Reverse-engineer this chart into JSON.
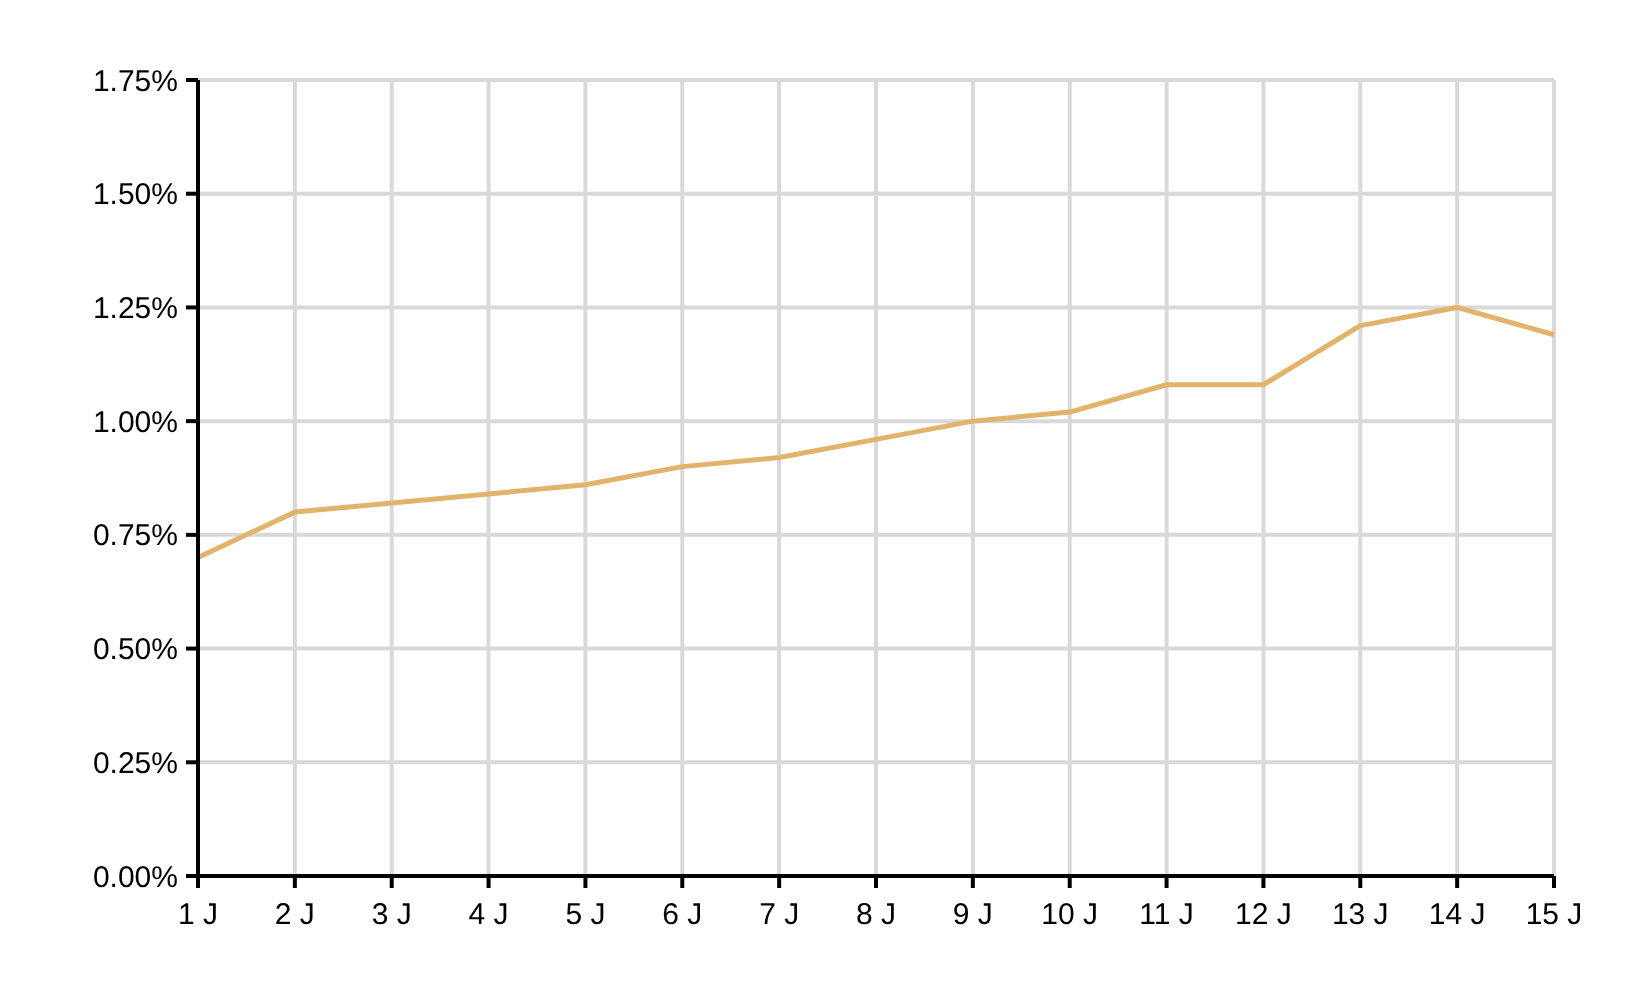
{
  "chart_data": {
    "type": "line",
    "categories": [
      "1 J",
      "2 J",
      "3 J",
      "4 J",
      "5 J",
      "6 J",
      "7 J",
      "8 J",
      "9 J",
      "10 J",
      "11 J",
      "12 J",
      "13 J",
      "14 J",
      "15 J"
    ],
    "series": [
      {
        "color": "#e2b46b",
        "values": [
          0.7,
          0.8,
          0.82,
          0.84,
          0.86,
          0.9,
          0.92,
          0.96,
          1.0,
          1.02,
          1.08,
          1.08,
          1.21,
          1.25,
          1.19
        ]
      }
    ],
    "ylim": [
      0,
      1.75
    ],
    "yticks": [
      {
        "value": 0,
        "label": "0.00%"
      },
      {
        "value": 0.25,
        "label": "0.25%"
      },
      {
        "value": 0.5,
        "label": "0.50%"
      },
      {
        "value": 0.75,
        "label": "0.75%"
      },
      {
        "value": 1,
        "label": "1.00%"
      },
      {
        "value": 1.25,
        "label": "1.25%"
      },
      {
        "value": 1.5,
        "label": "1.50%"
      },
      {
        "value": 1.75,
        "label": "1.75%"
      }
    ],
    "grid": true,
    "line_style": "solid"
  }
}
